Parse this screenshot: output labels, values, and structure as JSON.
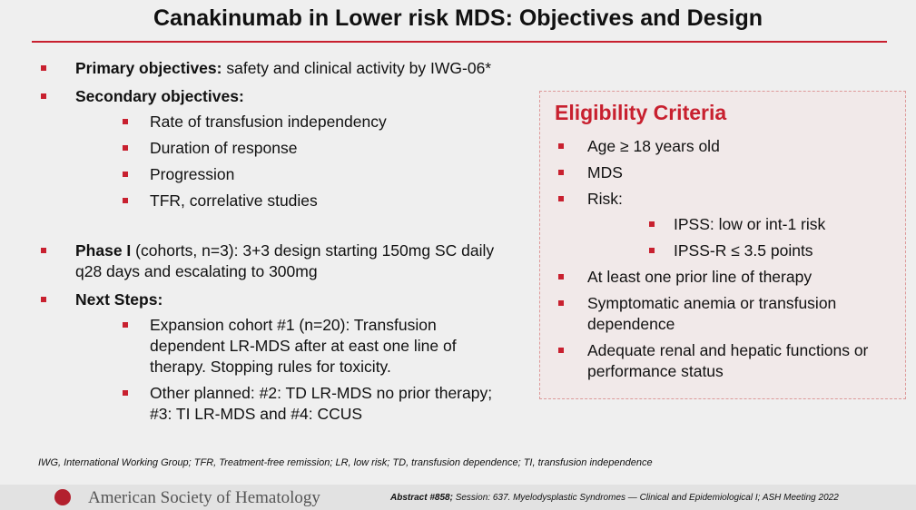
{
  "title": "Canakinumab in Lower risk MDS: Objectives and Design",
  "objectives": [
    {
      "label": "Primary objectives:",
      "text": "safety and clinical activity by IWG-06*"
    },
    {
      "label": "Secondary objectives:",
      "subitems": [
        "Rate of transfusion independency",
        "Duration of response",
        "Progression",
        "TFR, correlative studies"
      ]
    },
    {
      "label": "Phase I",
      "text": "(cohorts, n=3): 3+3 design starting 150mg SC daily q28 days and escalating to 300mg"
    },
    {
      "label": "Next Steps:",
      "subitems": [
        "Expansion cohort #1 (n=20): Transfusion dependent LR-MDS after at east one line of therapy. Stopping rules for toxicity.",
        "Other planned: #2: TD LR-MDS no prior therapy; #3: TI LR-MDS and #4: CCUS"
      ]
    }
  ],
  "eligibility": {
    "title": "Eligibility Criteria",
    "items": [
      {
        "text": "Age ≥ 18 years old"
      },
      {
        "text": "MDS"
      },
      {
        "text": "Risk:",
        "subitems": [
          "IPSS: low or int-1 risk",
          "IPSS-R ≤ 3.5 points"
        ]
      },
      {
        "text": "At least one prior line of therapy"
      },
      {
        "text": "Symptomatic anemia or transfusion dependence"
      },
      {
        "text": "Adequate renal and hepatic functions or performance status"
      }
    ]
  },
  "footnote": "IWG, International Working Group; TFR, Treatment-free remission; LR, low risk; TD, transfusion dependence; TI, transfusion independence",
  "footer": {
    "society": "American Society of Hematology",
    "abstract": "Abstract #858;",
    "citation": "Session: 637. Myelodysplastic Syndromes — Clinical and Epidemiological I; ASH Meeting 2022"
  }
}
